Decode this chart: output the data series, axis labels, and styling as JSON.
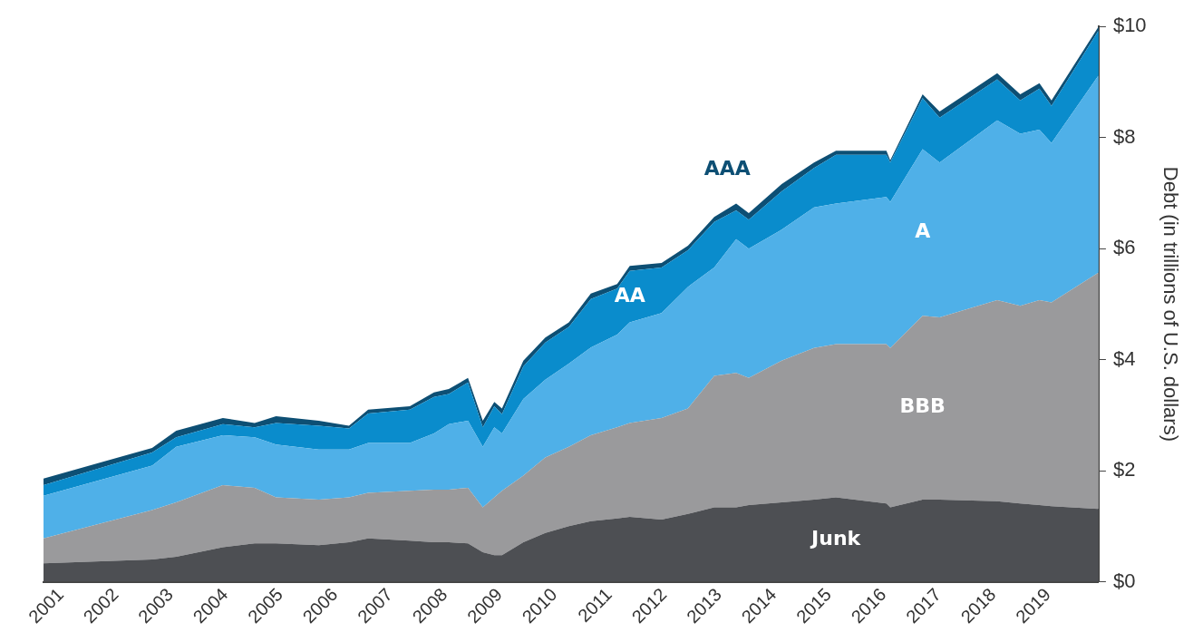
{
  "chart_data": {
    "type": "area",
    "stacked": true,
    "ylabel": "Debt (in trillions of U.S. dollars)",
    "grid": false,
    "legend": false,
    "x": [
      2000.68,
      2002.66,
      2003.1,
      2003.95,
      2004.53,
      2004.92,
      2005.7,
      2006.25,
      2006.6,
      2007.36,
      2007.8,
      2008.07,
      2008.42,
      2008.69,
      2008.9,
      2009.04,
      2009.43,
      2009.83,
      2010.26,
      2010.66,
      2011.14,
      2011.37,
      2011.95,
      2012.43,
      2012.91,
      2013.31,
      2013.54,
      2014.14,
      2014.73,
      2015.13,
      2016.05,
      2016.12,
      2016.71,
      2017.02,
      2018.07,
      2018.49,
      2018.84,
      2019.06,
      2019.92
    ],
    "xlim": [
      2000.68,
      2019.92
    ],
    "xticks": [
      2001,
      2002,
      2003,
      2004,
      2005,
      2006,
      2007,
      2008,
      2009,
      2010,
      2011,
      2012,
      2013,
      2014,
      2015,
      2016,
      2017,
      2018,
      2019
    ],
    "ylim": [
      0,
      10
    ],
    "yticks": [
      {
        "value": 0,
        "label": "$0"
      },
      {
        "value": 2,
        "label": "$2"
      },
      {
        "value": 4,
        "label": "$4"
      },
      {
        "value": 6,
        "label": "$6"
      },
      {
        "value": 8,
        "label": "$8"
      },
      {
        "value": 10,
        "label": "$10"
      }
    ],
    "series": [
      {
        "name": "Junk",
        "color": "#4d4f53",
        "values": [
          0.33,
          0.4,
          0.45,
          0.62,
          0.69,
          0.69,
          0.66,
          0.71,
          0.78,
          0.74,
          0.71,
          0.71,
          0.69,
          0.53,
          0.48,
          0.48,
          0.71,
          0.88,
          1.0,
          1.09,
          1.14,
          1.17,
          1.12,
          1.22,
          1.34,
          1.34,
          1.38,
          1.43,
          1.48,
          1.52,
          1.41,
          1.34,
          1.48,
          1.48,
          1.45,
          1.41,
          1.38,
          1.36,
          1.31
        ]
      },
      {
        "name": "BBB",
        "color": "#9a9a9c",
        "values": [
          0.45,
          0.89,
          0.98,
          1.12,
          1.0,
          0.83,
          0.82,
          0.81,
          0.82,
          0.9,
          0.95,
          0.95,
          1.0,
          0.81,
          1.04,
          1.16,
          1.2,
          1.36,
          1.43,
          1.55,
          1.64,
          1.69,
          1.83,
          1.9,
          2.37,
          2.42,
          2.29,
          2.55,
          2.73,
          2.76,
          2.87,
          2.87,
          3.31,
          3.28,
          3.62,
          3.56,
          3.69,
          3.67,
          4.26
        ]
      },
      {
        "name": "A",
        "color": "#4fb0e8",
        "values": [
          0.77,
          0.8,
          1.0,
          0.9,
          0.91,
          0.95,
          0.9,
          0.86,
          0.9,
          0.86,
          1.01,
          1.18,
          1.21,
          1.09,
          1.26,
          1.03,
          1.38,
          1.4,
          1.5,
          1.58,
          1.67,
          1.81,
          1.89,
          2.19,
          1.95,
          2.41,
          2.33,
          2.36,
          2.53,
          2.53,
          2.65,
          2.63,
          3.0,
          2.79,
          3.24,
          3.1,
          3.07,
          2.87,
          3.55
        ]
      },
      {
        "name": "AA",
        "color": "#0a8ccc",
        "values": [
          0.19,
          0.24,
          0.17,
          0.2,
          0.18,
          0.39,
          0.43,
          0.38,
          0.53,
          0.6,
          0.66,
          0.54,
          0.69,
          0.35,
          0.38,
          0.35,
          0.59,
          0.67,
          0.66,
          0.87,
          0.83,
          0.93,
          0.82,
          0.66,
          0.82,
          0.52,
          0.52,
          0.69,
          0.71,
          0.88,
          0.76,
          0.71,
          0.92,
          0.81,
          0.74,
          0.6,
          0.74,
          0.67,
          0.81
        ]
      },
      {
        "name": "AAA",
        "color": "#0d4f74",
        "values": [
          0.12,
          0.08,
          0.12,
          0.11,
          0.08,
          0.12,
          0.09,
          0.05,
          0.07,
          0.06,
          0.08,
          0.09,
          0.08,
          0.12,
          0.08,
          0.1,
          0.1,
          0.09,
          0.08,
          0.1,
          0.08,
          0.09,
          0.08,
          0.08,
          0.09,
          0.12,
          0.12,
          0.13,
          0.1,
          0.07,
          0.07,
          0.04,
          0.07,
          0.11,
          0.11,
          0.11,
          0.1,
          0.1,
          0.07
        ]
      }
    ]
  }
}
